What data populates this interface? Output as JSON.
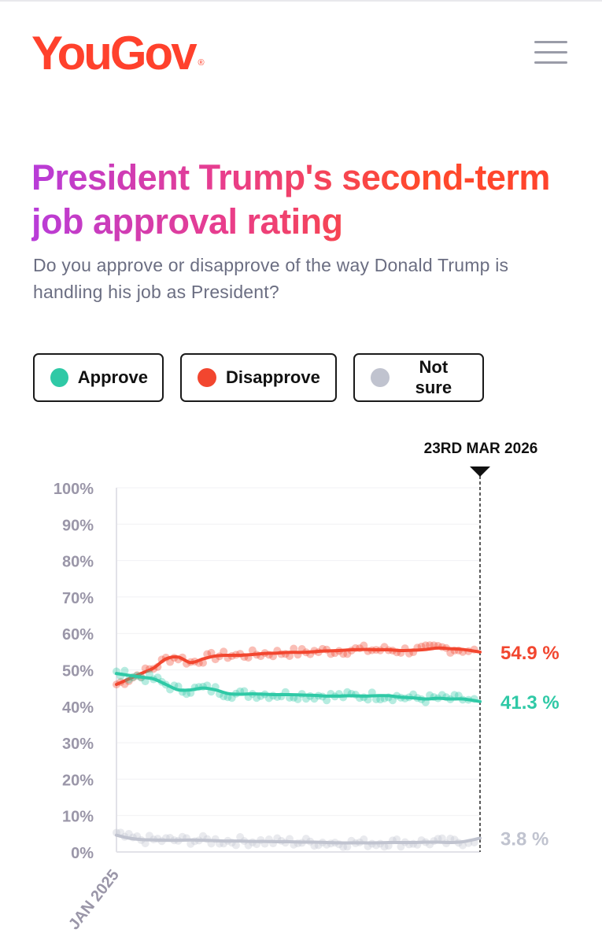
{
  "brand": {
    "logo": "YouGov",
    "registered": "®"
  },
  "header": {
    "menu_icon": "hamburger-menu-icon"
  },
  "title": "President Trump's second-term job approval rating",
  "subtitle": "Do you approve or disapprove of the way Donald Trump is handling his job as President?",
  "colors": {
    "approve": "#2fc9a6",
    "disapprove": "#f2462f",
    "not_sure": "#c0c3cf",
    "axis_text": "#9a96a8"
  },
  "legend": [
    {
      "label": "Approve",
      "color": "#2fc9a6"
    },
    {
      "label": "Disapprove",
      "color": "#f2462f"
    },
    {
      "label": "Not sure",
      "color": "#c0c3cf"
    }
  ],
  "chart_data": {
    "type": "line",
    "title": "President Trump's second-term job approval rating",
    "ylim": [
      0,
      100
    ],
    "y_ticks": [
      "0%",
      "10%",
      "20%",
      "30%",
      "40%",
      "50%",
      "60%",
      "70%",
      "80%",
      "90%",
      "100%"
    ],
    "x_start_label": "JAN 2025",
    "marker_label": "23RD MAR 2026",
    "x_range_months": [
      0,
      14.7
    ],
    "series": [
      {
        "name": "Disapprove",
        "end_label": "54.9 %",
        "x": [
          0,
          0.5,
          1,
          1.5,
          2,
          2.5,
          3,
          3.5,
          4,
          4.5,
          5,
          5.5,
          6,
          6.5,
          7,
          7.5,
          8,
          8.5,
          9,
          9.5,
          10,
          10.5,
          11,
          11.5,
          12,
          12.5,
          13,
          13.5,
          14,
          14.7
        ],
        "values": [
          46,
          47.5,
          49,
          50.5,
          53,
          53.5,
          52,
          53,
          53.8,
          54,
          54,
          54.2,
          54.5,
          54.6,
          54.8,
          54.8,
          55,
          55.2,
          55.3,
          55.5,
          55.6,
          55.5,
          55.5,
          55.3,
          55.4,
          55.6,
          56,
          55.8,
          55.6,
          54.9
        ]
      },
      {
        "name": "Approve",
        "end_label": "41.3 %",
        "x": [
          0,
          0.5,
          1,
          1.5,
          2,
          2.5,
          3,
          3.5,
          4,
          4.5,
          5,
          5.5,
          6,
          6.5,
          7,
          7.5,
          8,
          8.5,
          9,
          9.5,
          10,
          10.5,
          11,
          11.5,
          12,
          12.5,
          13,
          13.5,
          14,
          14.7
        ],
        "values": [
          49,
          48.5,
          48,
          47.5,
          46,
          44.5,
          44.5,
          45,
          44.5,
          43.5,
          43.3,
          43.4,
          43.3,
          43.2,
          43.2,
          43.1,
          43,
          42.8,
          42.8,
          42.9,
          42.8,
          42.9,
          42.9,
          42.5,
          42.3,
          42,
          42.2,
          42,
          42,
          41.3
        ]
      },
      {
        "name": "Not sure",
        "end_label": "3.8 %",
        "x": [
          0,
          0.5,
          1,
          1.5,
          2,
          2.5,
          3,
          3.5,
          4,
          4.5,
          5,
          5.5,
          6,
          6.5,
          7,
          7.5,
          8,
          8.5,
          9,
          9.5,
          10,
          10.5,
          11,
          11.5,
          12,
          12.5,
          13,
          13.5,
          14,
          14.7
        ],
        "values": [
          4.6,
          3.8,
          3.4,
          3.3,
          3.2,
          3.2,
          3.3,
          3.2,
          3.1,
          3.0,
          3.0,
          2.9,
          2.9,
          2.8,
          2.8,
          2.7,
          2.7,
          2.6,
          2.5,
          2.5,
          2.5,
          2.5,
          2.6,
          2.6,
          2.6,
          2.7,
          2.7,
          2.6,
          2.8,
          3.8
        ]
      }
    ]
  }
}
